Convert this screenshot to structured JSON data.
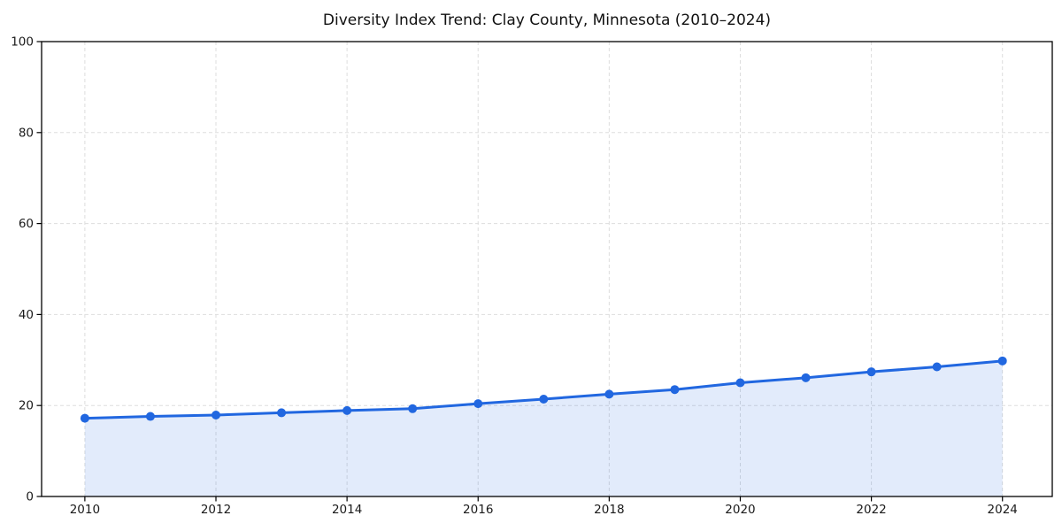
{
  "chart_data": {
    "type": "line",
    "title": "Diversity Index Trend: Clay County, Minnesota (2010–2024)",
    "x": [
      2010,
      2011,
      2012,
      2013,
      2014,
      2015,
      2016,
      2017,
      2018,
      2019,
      2020,
      2021,
      2022,
      2023,
      2024
    ],
    "values": [
      17.2,
      17.6,
      17.9,
      18.4,
      18.9,
      19.3,
      20.4,
      21.4,
      22.5,
      23.5,
      25.0,
      26.1,
      27.4,
      28.5,
      29.8
    ],
    "xlabel": "",
    "ylabel": "",
    "ylim": [
      0,
      100
    ],
    "yticks": [
      0,
      20,
      40,
      60,
      80,
      100
    ],
    "xticks": [
      2010,
      2012,
      2014,
      2016,
      2018,
      2020,
      2022,
      2024
    ],
    "x_range": [
      2009.34,
      2024.76
    ],
    "grid": true,
    "grid_style": "dashed",
    "legend": false,
    "area_fill": true,
    "marker": "circle",
    "colors": {
      "line": "#2167e0",
      "fill": "#2167e0",
      "fill_opacity": 0.13,
      "grid": "#dddddd",
      "axis": "#000000",
      "text": "#1a1a1a"
    }
  }
}
